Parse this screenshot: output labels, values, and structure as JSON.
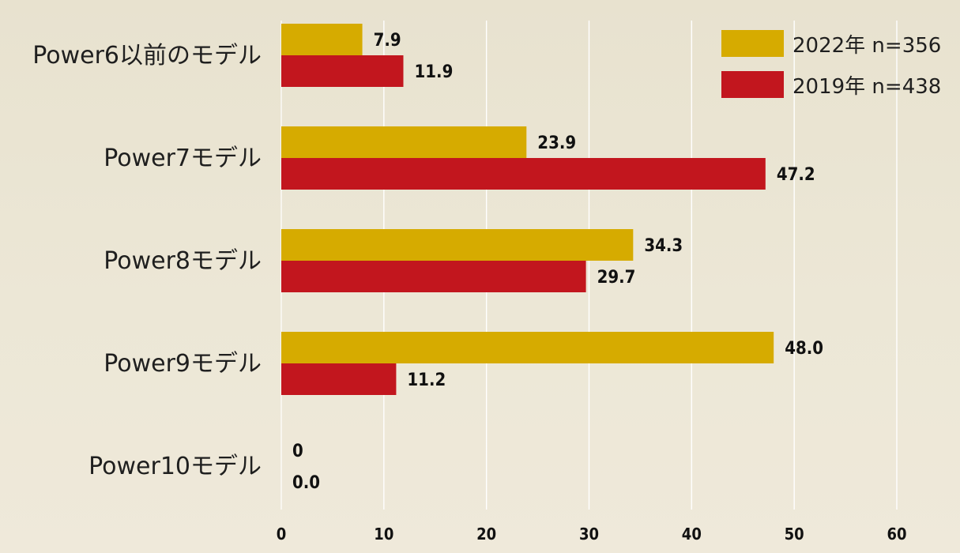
{
  "chart_data": {
    "type": "bar",
    "orientation": "horizontal",
    "categories": [
      "Power6以前のモデル",
      "Power7モデル",
      "Power8モデル",
      "Power9モデル",
      "Power10モデル"
    ],
    "series": [
      {
        "name": "2022年 n=356",
        "color": "#d6ab00",
        "values": [
          7.9,
          23.9,
          34.3,
          48.0,
          0
        ],
        "labels": [
          "7.9",
          "23.9",
          "34.3",
          "48.0",
          "0"
        ]
      },
      {
        "name": "2019年 n=438",
        "color": "#c2161e",
        "values": [
          11.9,
          47.2,
          29.7,
          11.2,
          0.0
        ],
        "labels": [
          "11.9",
          "47.2",
          "29.7",
          "11.2",
          "0.0"
        ]
      }
    ],
    "xlim": [
      0,
      60
    ],
    "xticks": [
      "0",
      "10",
      "20",
      "30",
      "40",
      "50",
      "60"
    ],
    "grid": true,
    "legend_position": "top-right",
    "grid_color": "#ffffff"
  }
}
